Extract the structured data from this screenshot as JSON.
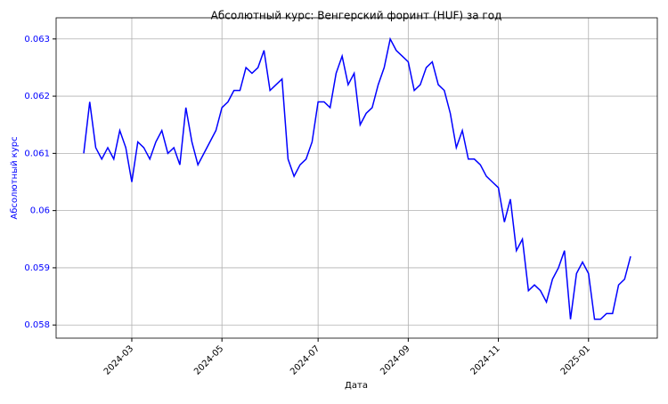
{
  "chart_data": {
    "type": "line",
    "title": "Абсолютный курс: Венгерский форинт (HUF) за год",
    "x_label": "Дата",
    "y_label": "Абсолютный курс",
    "categories": [
      null,
      null,
      null,
      null,
      null,
      null,
      null,
      null,
      "2024-03",
      null,
      null,
      null,
      null,
      null,
      null,
      null,
      null,
      null,
      null,
      null,
      null,
      null,
      null,
      "2024-05",
      null,
      null,
      null,
      null,
      null,
      null,
      null,
      null,
      null,
      null,
      null,
      null,
      null,
      null,
      null,
      "2024-07",
      null,
      null,
      null,
      null,
      null,
      null,
      null,
      null,
      null,
      null,
      null,
      null,
      null,
      null,
      "2024-09",
      null,
      null,
      null,
      null,
      null,
      null,
      null,
      null,
      null,
      null,
      null,
      null,
      null,
      null,
      "2024-11",
      null,
      null,
      null,
      null,
      null,
      null,
      null,
      null,
      null,
      null,
      null,
      null,
      null,
      null,
      "2025-01",
      null,
      null,
      null,
      null,
      null,
      null,
      null
    ],
    "series": [
      {
        "name": "HUF",
        "color": "#0000ff",
        "values": [
          0.061,
          0.0619,
          0.0611,
          0.0609,
          0.0611,
          0.0609,
          0.0614,
          0.0611,
          0.0605,
          0.0612,
          0.0611,
          0.0609,
          0.0612,
          0.0614,
          0.061,
          0.0611,
          0.0608,
          0.0618,
          0.0612,
          0.0608,
          0.061,
          0.0612,
          0.0614,
          0.0618,
          0.0619,
          0.0621,
          0.0621,
          0.0625,
          0.0624,
          0.0625,
          0.0628,
          0.0621,
          0.0622,
          0.0623,
          0.0609,
          0.0606,
          0.0608,
          0.0609,
          0.0612,
          0.0619,
          0.0619,
          0.0618,
          0.0624,
          0.0627,
          0.0622,
          0.0624,
          0.0615,
          0.0617,
          0.0618,
          0.0622,
          0.0625,
          0.063,
          0.0628,
          0.0627,
          0.0626,
          0.0621,
          0.0622,
          0.0625,
          0.0626,
          0.0622,
          0.0621,
          0.0617,
          0.0611,
          0.0614,
          0.0609,
          0.0609,
          0.0608,
          0.0606,
          0.0605,
          0.0604,
          0.0598,
          0.0602,
          0.0593,
          0.0595,
          0.0586,
          0.0587,
          0.0586,
          0.0584,
          0.0588,
          0.059,
          0.0593,
          0.0581,
          0.0589,
          0.0591,
          0.0589,
          0.0581,
          0.0581,
          0.0582,
          0.0582,
          0.0587,
          0.0588,
          0.0592
        ]
      }
    ],
    "ylim": [
      0.05777,
      0.06337
    ],
    "yticks": [
      0.058,
      0.059,
      0.06,
      0.061,
      0.062,
      0.063
    ],
    "grid": true,
    "axis_label_color": "#0000ff"
  }
}
